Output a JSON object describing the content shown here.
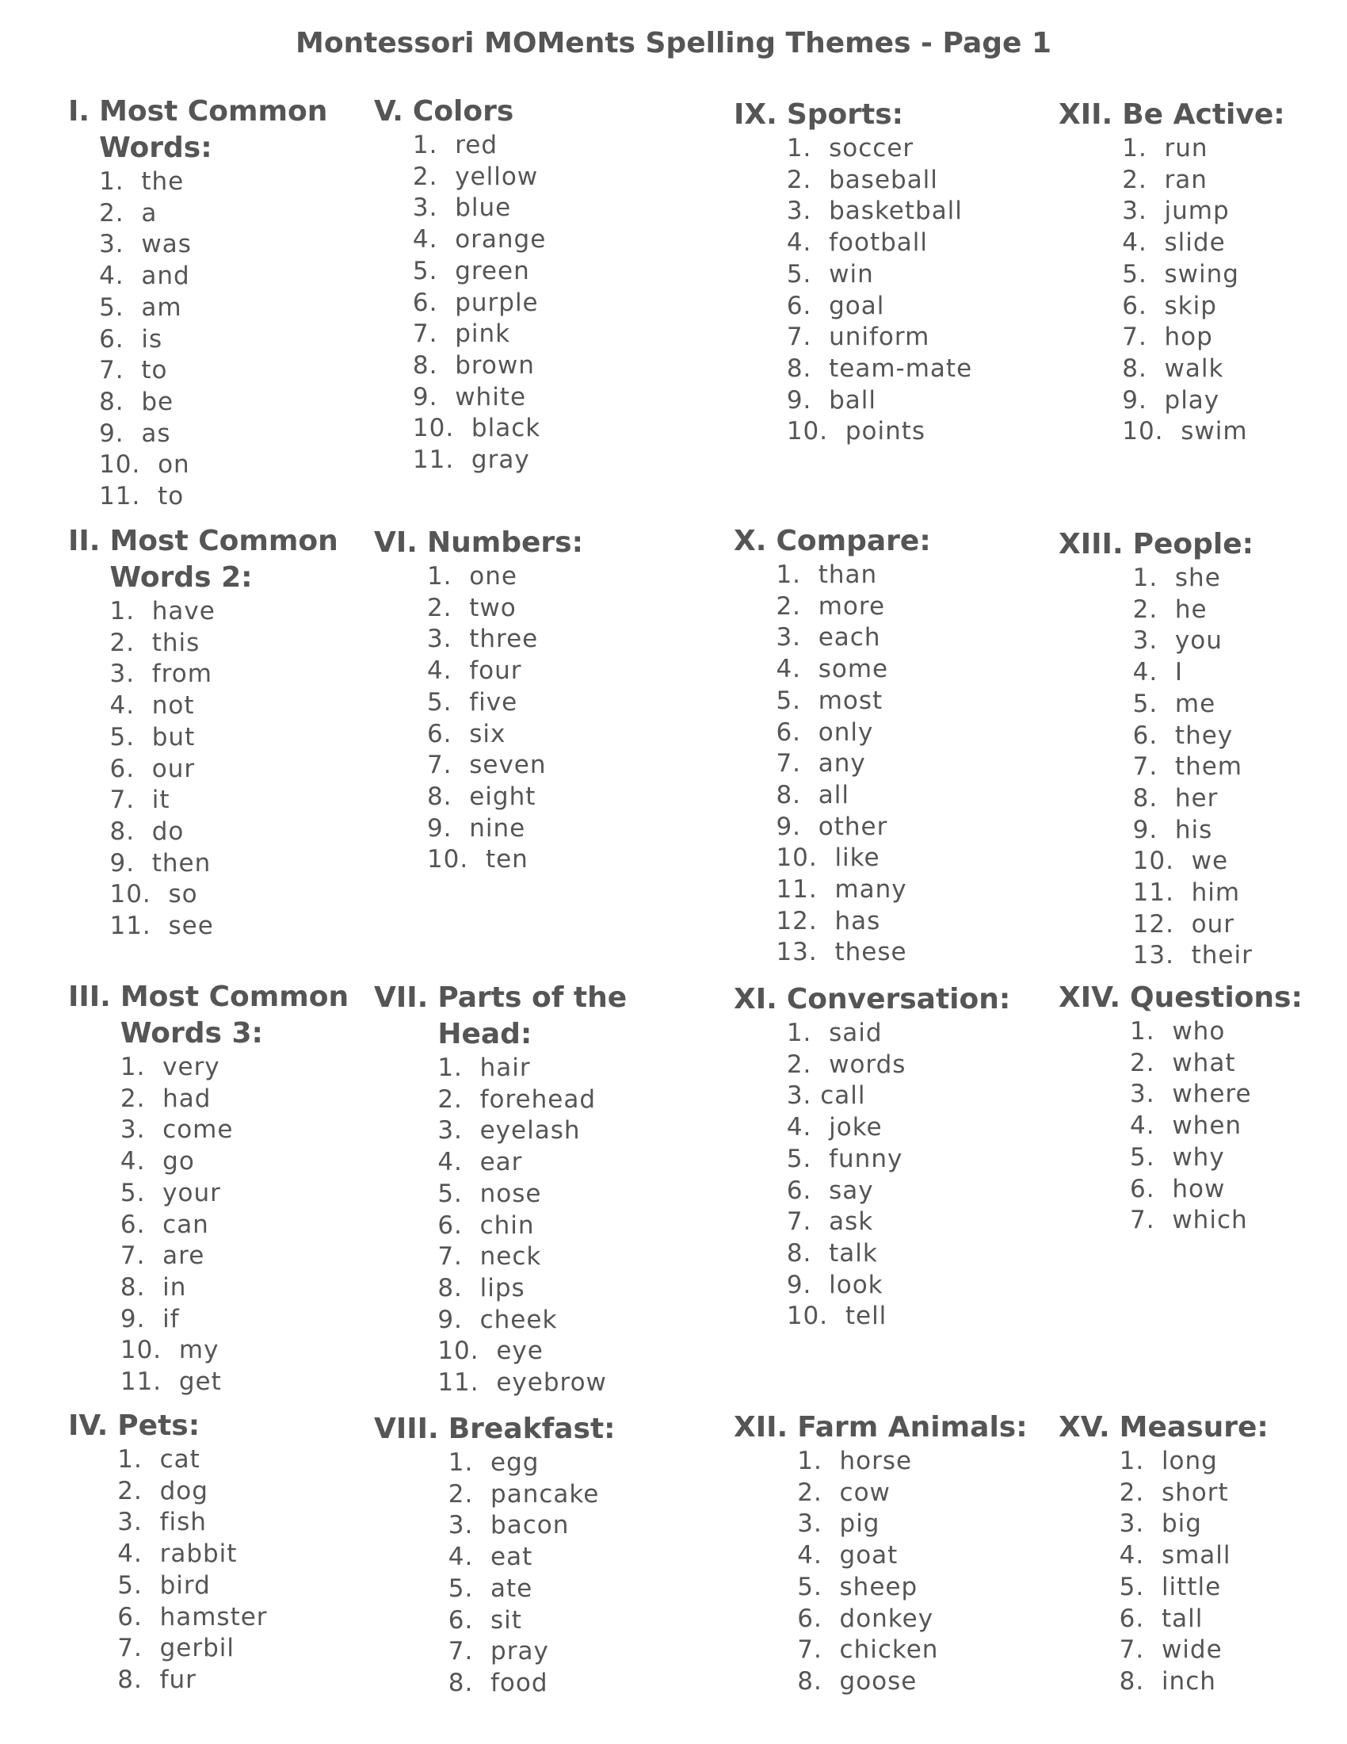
{
  "page_title": "Montessori MOMents Spelling Themes - Page 1",
  "text_color": "#555555",
  "sections": [
    {
      "numeral": "I.",
      "title": "Most Common Words:",
      "items": [
        "1.  the",
        "2.  a",
        "3.  was",
        "4.  and",
        "5.  am",
        "6.  is",
        "7.  to",
        "8.  be",
        "9.  as",
        "10.  on",
        "11.  to"
      ]
    },
    {
      "numeral": "II.",
      "title": "Most Common Words 2:",
      "items": [
        "1.  have",
        "2.  this",
        "3.  from",
        "4.  not",
        "5.  but",
        "6.  our",
        "7.  it",
        "8.  do",
        "9.  then",
        "10.  so",
        "11.  see"
      ]
    },
    {
      "numeral": "III.",
      "title": "Most Common Words 3:",
      "items": [
        "1.  very",
        "2.  had",
        "3.  come",
        "4.  go",
        "5.  your",
        "6.  can",
        "7.  are",
        "8.  in",
        "9.  if",
        "10.  my",
        "11.  get"
      ]
    },
    {
      "numeral": "IV.",
      "title": "Pets:",
      "items": [
        "1.  cat",
        "2.  dog",
        "3.  fish",
        "4.  rabbit",
        "5.  bird",
        "6.  hamster",
        "7.  gerbil",
        "8.  fur"
      ]
    },
    {
      "numeral": "V.",
      "title": "Colors",
      "items": [
        "1.  red",
        "2.  yellow",
        "3.  blue",
        "4.  orange",
        "5.  green",
        "6.  purple",
        "7.  pink",
        "8.  brown",
        "9.  white",
        "10.  black",
        "11.  gray"
      ]
    },
    {
      "numeral": "VI.",
      "title": "Numbers:",
      "items": [
        "1.  one",
        "2.  two",
        "3.  three",
        "4.  four",
        "5.  five",
        "6.  six",
        "7.  seven",
        "8.  eight",
        "9.  nine",
        "10.  ten"
      ]
    },
    {
      "numeral": "VII.",
      "title": "Parts of the Head:",
      "items": [
        "1.  hair",
        "2.  forehead",
        "3.  eyelash",
        "4.  ear",
        "5.  nose",
        "6.  chin",
        "7.  neck",
        "8.  lips",
        "9.  cheek",
        "10.  eye",
        "11.  eyebrow"
      ]
    },
    {
      "numeral": "VIII.",
      "title": "Breakfast:",
      "items": [
        "1.  egg",
        "2.  pancake",
        "3.  bacon",
        "4.  eat",
        "5.  ate",
        "6.  sit",
        "7.  pray",
        "8.  food"
      ]
    },
    {
      "numeral": "IX.",
      "title": "Sports:",
      "items": [
        "1.  soccer",
        "2.  baseball",
        "3.  basketball",
        "4.  football",
        "5.  win",
        "6.  goal",
        "7.  uniform",
        "8.  team-mate",
        "9.  ball",
        "10.  points"
      ]
    },
    {
      "numeral": "X.",
      "title": "Compare:",
      "items": [
        "1.  than",
        "2.  more",
        "3.  each",
        "4.  some",
        "5.  most",
        "6.  only",
        "7.  any",
        "8.  all",
        "9.  other",
        "10.  like",
        "11.  many",
        "12.  has",
        "13.  these"
      ]
    },
    {
      "numeral": "XI.",
      "title": "Conversation:",
      "items": [
        "1.  said",
        "2.  words",
        "3. call",
        "4.  joke",
        "5.  funny",
        "6.  say",
        "7.  ask",
        "8.  talk",
        "9.  look",
        "10.  tell"
      ]
    },
    {
      "numeral": "XII.",
      "title": "Farm Animals:",
      "items": [
        "1.  horse",
        "2.  cow",
        "3.  pig",
        "4.  goat",
        "5.  sheep",
        "6.  donkey",
        "7.  chicken",
        "8.  goose"
      ]
    },
    {
      "numeral": "XII.",
      "title": "Be Active:",
      "items": [
        "1.  run",
        "2.  ran",
        "3.  jump",
        "4.  slide",
        "5.  swing",
        "6.  skip",
        "7.  hop",
        "8.  walk",
        "9.  play",
        "10.  swim"
      ]
    },
    {
      "numeral": "XIII.",
      "title": "People:",
      "items": [
        "1.  she",
        "2.  he",
        "3.  you",
        "4.  I",
        "5.  me",
        "6.  they",
        "7.  them",
        "8.  her",
        "9.  his",
        "10.  we",
        "11.  him",
        "12.  our",
        "13.  their"
      ]
    },
    {
      "numeral": "XIV.",
      "title": "Questions:",
      "items": [
        "1.  who",
        "2.  what",
        "3.  where",
        "4.  when",
        "5.  why",
        "6.  how",
        "7.  which"
      ]
    },
    {
      "numeral": "XV.",
      "title": "Measure:",
      "items": [
        "1.  long",
        "2.  short",
        "3.  big",
        "4.  small",
        "5.  little",
        "6.  tall",
        "7.  wide",
        "8.  inch"
      ]
    }
  ]
}
